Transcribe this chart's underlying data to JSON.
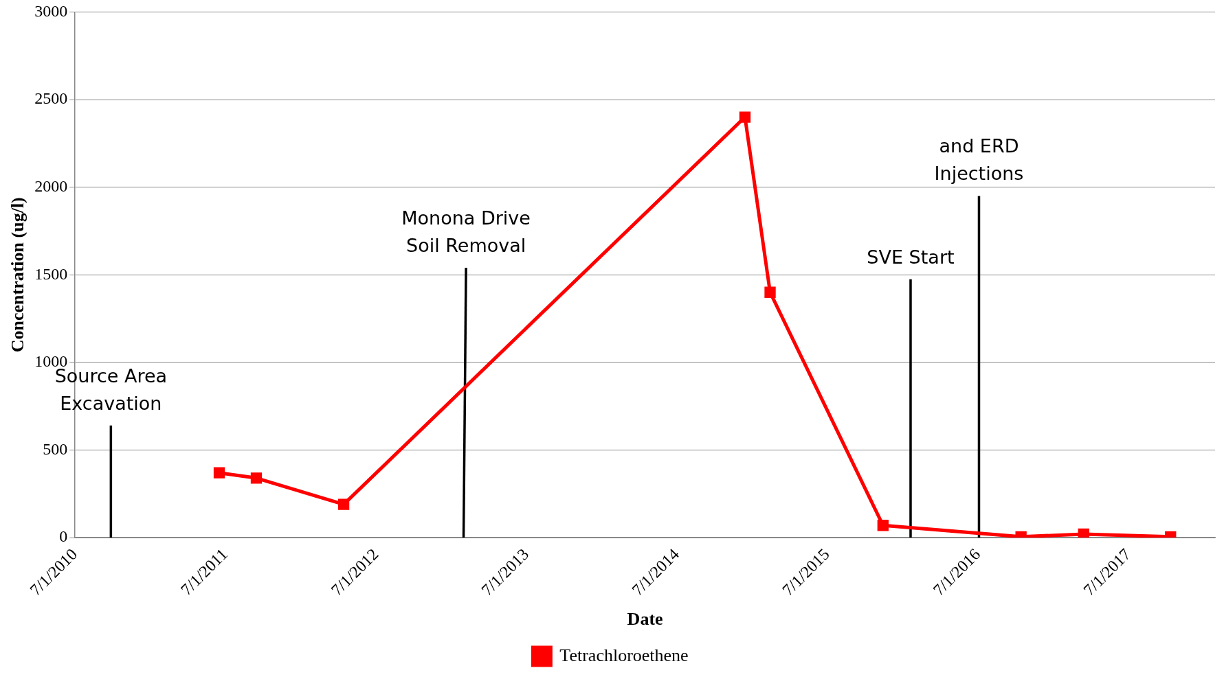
{
  "chart_data": {
    "type": "line",
    "xlabel": "Date",
    "ylabel": "Concentration (ug/l)",
    "xlim": [
      "2010-07-01",
      "2018-01-27"
    ],
    "xticks": [
      {
        "value": "2010-07-01",
        "label": "7/1/2010"
      },
      {
        "value": "2011-07-01",
        "label": "7/1/2011"
      },
      {
        "value": "2012-07-01",
        "label": "7/1/2012"
      },
      {
        "value": "2013-07-01",
        "label": "7/1/2013"
      },
      {
        "value": "2014-07-01",
        "label": "7/1/2014"
      },
      {
        "value": "2015-07-01",
        "label": "7/1/2015"
      },
      {
        "value": "2016-07-01",
        "label": "7/1/2016"
      },
      {
        "value": "2017-07-01",
        "label": "7/1/2017"
      }
    ],
    "ylim": [
      0,
      3000
    ],
    "yticks": [
      0,
      500,
      1000,
      1500,
      2000,
      2500,
      3000
    ],
    "grid": "y",
    "legend": "bottom",
    "series": [
      {
        "name": "Tetrachloroethene",
        "color": "#ff0000",
        "marker": "square",
        "x": [
          "2011-06-16",
          "2011-09-14",
          "2012-04-13",
          "2014-12-13",
          "2015-02-12",
          "2015-11-13",
          "2016-10-13",
          "2017-03-14",
          "2017-10-11"
        ],
        "values": [
          370,
          340,
          190,
          2400,
          1400,
          70,
          5,
          20,
          5
        ]
      },
      {
        "color": "#000000",
        "marker": "none",
        "x": [
          "2010-09-26",
          "2010-09-26"
        ],
        "values": [
          0,
          640
        ]
      },
      {
        "color": "#000000",
        "marker": "none",
        "x": [
          "2013-01-29",
          "2013-02-04"
        ],
        "values": [
          0,
          1540
        ]
      },
      {
        "color": "#000000",
        "marker": "none",
        "x": [
          "2016-01-19",
          "2016-01-19"
        ],
        "values": [
          0,
          1475
        ]
      },
      {
        "color": "#000000",
        "marker": "none",
        "x": [
          "2016-07-03",
          "2016-07-03"
        ],
        "values": [
          0,
          1950
        ]
      }
    ],
    "annotations": [
      {
        "text": "Source Area Excavation",
        "x": "2010-09-26",
        "y": 640
      },
      {
        "text": "Monona Drive Soil Removal",
        "x": "2013-02-04",
        "y": 1540
      },
      {
        "text": "SVE Start",
        "x": "2016-01-19",
        "y": 1475
      },
      {
        "text": "and ERD Injections",
        "x": "2016-07-03",
        "y": 1950
      }
    ]
  }
}
